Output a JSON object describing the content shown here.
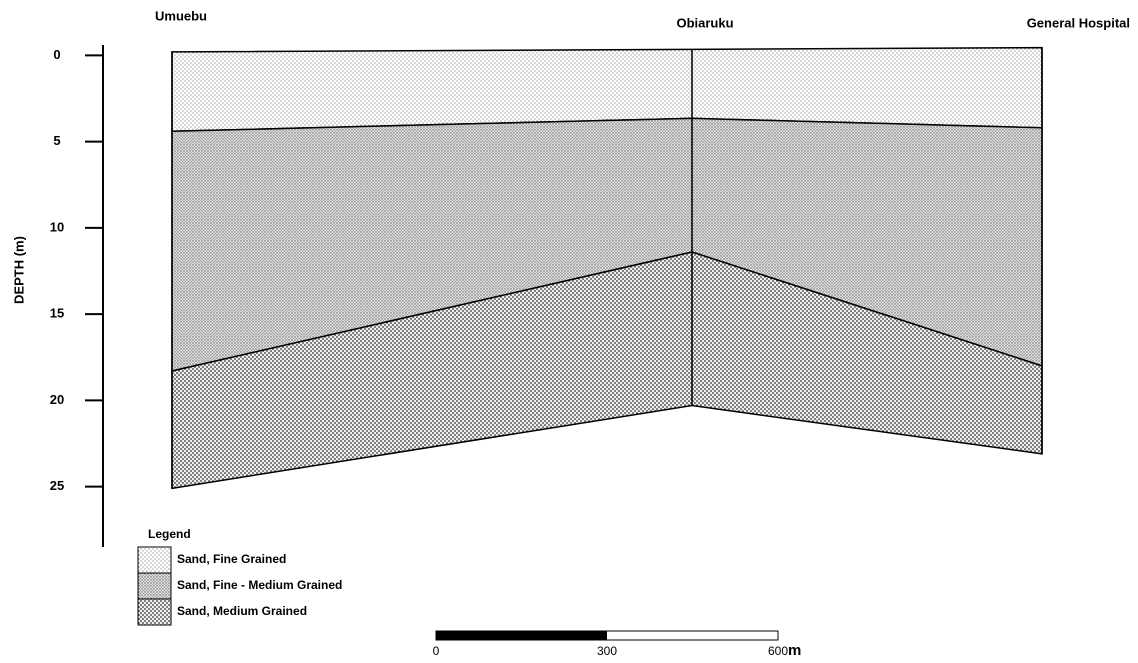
{
  "locations": [
    "Umuebu",
    "Obiaruku",
    "General Hospital"
  ],
  "depth_axis": {
    "label": "DEPTH (m)",
    "ylim": [
      -0.6,
      28.5
    ],
    "yticks": [
      0,
      5,
      10,
      15,
      20,
      25
    ]
  },
  "boundaries": [
    [
      -0.2,
      -0.35,
      -0.45
    ],
    [
      4.4,
      3.65,
      4.2
    ],
    [
      18.3,
      11.4,
      18.0
    ],
    [
      25.1,
      20.3,
      23.1
    ]
  ],
  "legend": {
    "title": "Legend",
    "items": [
      "Sand, Fine Grained",
      "Sand, Fine - Medium Grained",
      "Sand, Medium Grained"
    ]
  },
  "scale_bar": {
    "ticks": [
      0,
      300,
      600
    ],
    "unit": "m"
  }
}
